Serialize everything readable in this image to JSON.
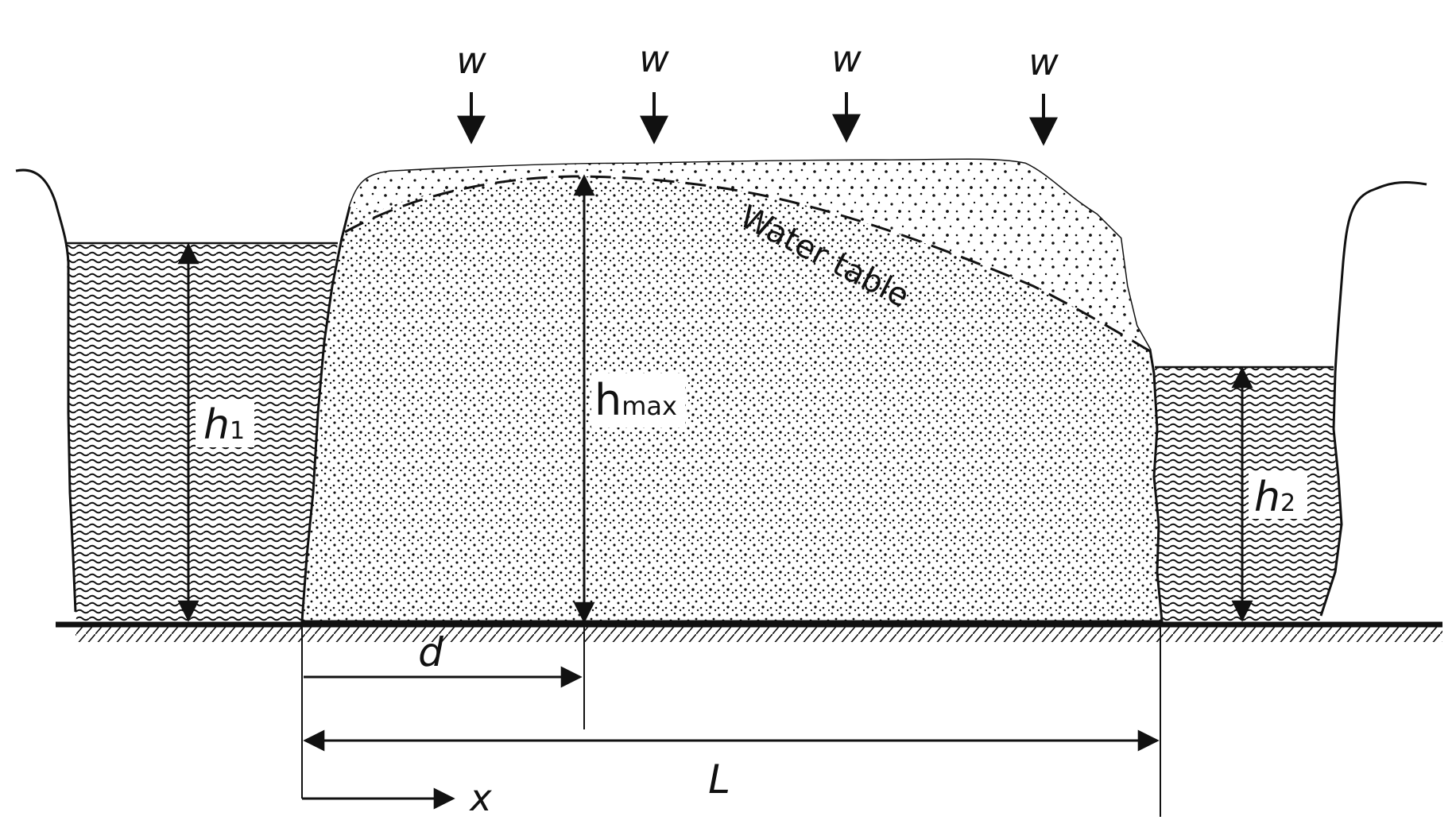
{
  "recharge": {
    "symbol": "w",
    "count": 4
  },
  "labels": {
    "water_table": "Water table",
    "h1": "h",
    "h1_sub": "1",
    "h2": "h",
    "h2_sub": "2",
    "hmax": "h",
    "hmax_sub": "max",
    "d": "d",
    "L": "L",
    "x": "x"
  },
  "colors": {
    "ink": "#111111",
    "paper": "#ffffff"
  }
}
